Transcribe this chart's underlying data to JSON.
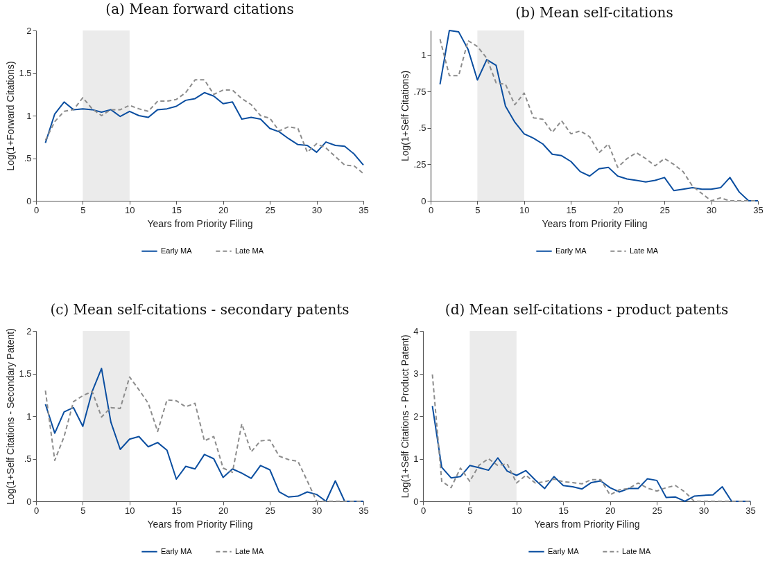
{
  "chart_data": [
    {
      "type": "line",
      "title": "(a) Mean forward citations",
      "xlabel": "Years from Priority Filing",
      "ylabel": "Log(1+Forward Citations)",
      "x": [
        1,
        2,
        3,
        4,
        5,
        6,
        7,
        8,
        9,
        10,
        11,
        12,
        13,
        14,
        15,
        16,
        17,
        18,
        19,
        20,
        21,
        22,
        23,
        24,
        25,
        26,
        27,
        28,
        29,
        30,
        31,
        32,
        33,
        34,
        35
      ],
      "series": [
        {
          "name": "Early MA",
          "color": "#0a4ea0",
          "line_style": "solid",
          "values": [
            0.68,
            1.02,
            1.16,
            1.07,
            1.08,
            1.07,
            1.04,
            1.07,
            0.99,
            1.05,
            1.0,
            0.98,
            1.07,
            1.08,
            1.11,
            1.18,
            1.2,
            1.27,
            1.23,
            1.14,
            1.16,
            0.96,
            0.98,
            0.96,
            0.85,
            0.81,
            0.73,
            0.66,
            0.65,
            0.57,
            0.69,
            0.65,
            0.64,
            0.55,
            0.42
          ]
        },
        {
          "name": "Late MA",
          "color": "#8c8c8c",
          "line_style": "dashed",
          "values": [
            0.71,
            0.93,
            1.05,
            1.07,
            1.21,
            1.08,
            1.0,
            1.07,
            1.07,
            1.12,
            1.08,
            1.05,
            1.17,
            1.17,
            1.19,
            1.27,
            1.42,
            1.42,
            1.25,
            1.3,
            1.3,
            1.2,
            1.13,
            1.0,
            0.97,
            0.82,
            0.87,
            0.85,
            0.57,
            0.67,
            0.62,
            0.52,
            0.42,
            0.41,
            0.32
          ]
        }
      ],
      "xlim": [
        0,
        35
      ],
      "xticks": [
        0,
        5,
        10,
        15,
        20,
        25,
        30,
        35
      ],
      "ylim": [
        0,
        2
      ],
      "yticks": [
        0,
        {
          "value": 0.5,
          "label": ".5"
        },
        1,
        1.5,
        2
      ],
      "bands": [
        {
          "axis": "x",
          "from": 5,
          "to": 10,
          "color": "#ebebeb"
        }
      ],
      "legend": "bottom",
      "grid": false
    },
    {
      "type": "line",
      "title": "(b) Mean self-citations",
      "xlabel": "Years from Priority Filing",
      "ylabel": "Log(1+Self Citations)",
      "x": [
        1,
        2,
        3,
        4,
        5,
        6,
        7,
        8,
        9,
        10,
        11,
        12,
        13,
        14,
        15,
        16,
        17,
        18,
        19,
        20,
        21,
        22,
        23,
        24,
        25,
        26,
        27,
        28,
        29,
        30,
        31,
        32,
        33,
        34,
        35
      ],
      "series": [
        {
          "name": "Early MA",
          "color": "#0a4ea0",
          "line_style": "solid",
          "values": [
            0.8,
            1.17,
            1.16,
            1.04,
            0.83,
            0.97,
            0.93,
            0.65,
            0.54,
            0.46,
            0.43,
            0.39,
            0.32,
            0.31,
            0.27,
            0.2,
            0.17,
            0.22,
            0.23,
            0.17,
            0.15,
            0.14,
            0.13,
            0.14,
            0.16,
            0.07,
            0.08,
            0.09,
            0.08,
            0.08,
            0.09,
            0.16,
            0.06,
            0,
            0
          ]
        },
        {
          "name": "Late MA",
          "color": "#8c8c8c",
          "line_style": "dashed",
          "values": [
            1.11,
            0.86,
            0.86,
            1.1,
            1.06,
            0.98,
            0.81,
            0.8,
            0.66,
            0.74,
            0.57,
            0.56,
            0.47,
            0.55,
            0.46,
            0.48,
            0.44,
            0.33,
            0.39,
            0.23,
            0.29,
            0.33,
            0.29,
            0.24,
            0.29,
            0.25,
            0.2,
            0.1,
            0.05,
            0,
            0.02,
            0,
            0,
            0,
            0
          ]
        }
      ],
      "xlim": [
        0,
        35
      ],
      "xticks": [
        0,
        5,
        10,
        15,
        20,
        25,
        30,
        35
      ],
      "ylim": [
        0,
        1.17
      ],
      "yticks": [
        0,
        {
          "value": 0.25,
          "label": ".25"
        },
        {
          "value": 0.5,
          "label": ".5"
        },
        {
          "value": 0.75,
          "label": ".75"
        },
        1
      ],
      "bands": [
        {
          "axis": "x",
          "from": 5,
          "to": 10,
          "color": "#ebebeb"
        }
      ],
      "legend": "bottom",
      "grid": false
    },
    {
      "type": "line",
      "title": "(c) Mean self-citations - secondary patents",
      "xlabel": "Years from Priority Filing",
      "ylabel": "Log(1+Self Citations - Secondary Patent)",
      "x": [
        1,
        2,
        3,
        4,
        5,
        6,
        7,
        8,
        9,
        10,
        11,
        12,
        13,
        14,
        15,
        16,
        17,
        18,
        19,
        20,
        21,
        22,
        23,
        24,
        25,
        26,
        27,
        28,
        29,
        30,
        31,
        32,
        33,
        34,
        35
      ],
      "series": [
        {
          "name": "Early MA",
          "color": "#0a4ea0",
          "line_style": "solid",
          "values": [
            1.14,
            0.8,
            1.05,
            1.1,
            0.88,
            1.29,
            1.56,
            0.93,
            0.61,
            0.73,
            0.76,
            0.64,
            0.69,
            0.6,
            0.26,
            0.41,
            0.38,
            0.55,
            0.5,
            0.28,
            0.38,
            0.33,
            0.27,
            0.42,
            0.37,
            0.11,
            0.05,
            0.06,
            0.11,
            0.08,
            0,
            0.24,
            0,
            0,
            0
          ]
        },
        {
          "name": "Late MA",
          "color": "#8c8c8c",
          "line_style": "dashed",
          "values": [
            1.3,
            0.48,
            0.76,
            1.17,
            1.24,
            1.29,
            0.99,
            1.1,
            1.09,
            1.46,
            1.31,
            1.15,
            0.82,
            1.19,
            1.18,
            1.11,
            1.15,
            0.71,
            0.76,
            0.39,
            0.34,
            0.91,
            0.58,
            0.71,
            0.72,
            0.53,
            0.49,
            0.47,
            0.24,
            0,
            0,
            0,
            0,
            0,
            0
          ]
        }
      ],
      "xlim": [
        0,
        35
      ],
      "xticks": [
        0,
        5,
        10,
        15,
        20,
        25,
        30,
        35
      ],
      "ylim": [
        0,
        2
      ],
      "yticks": [
        0,
        {
          "value": 0.5,
          "label": ".5"
        },
        1,
        1.5,
        2
      ],
      "bands": [
        {
          "axis": "x",
          "from": 5,
          "to": 10,
          "color": "#ebebeb"
        }
      ],
      "legend": "bottom",
      "grid": false
    },
    {
      "type": "line",
      "title": "(d) Mean self-citations - product patents",
      "xlabel": "Years from Priority Filing",
      "ylabel": "Log(1+Self Citations - Product Patent)",
      "x": [
        1,
        2,
        3,
        4,
        5,
        6,
        7,
        8,
        9,
        10,
        11,
        12,
        13,
        14,
        15,
        16,
        17,
        18,
        19,
        20,
        21,
        22,
        23,
        24,
        25,
        26,
        27,
        28,
        29,
        30,
        31,
        32,
        33,
        34,
        35
      ],
      "series": [
        {
          "name": "Early MA",
          "color": "#0a4ea0",
          "line_style": "solid",
          "values": [
            2.24,
            0.8,
            0.55,
            0.58,
            0.84,
            0.79,
            0.73,
            1.02,
            0.71,
            0.61,
            0.72,
            0.5,
            0.3,
            0.58,
            0.37,
            0.34,
            0.29,
            0.44,
            0.48,
            0.32,
            0.22,
            0.3,
            0.3,
            0.53,
            0.49,
            0.09,
            0.1,
            0,
            0.12,
            0.14,
            0.15,
            0.34,
            0,
            0,
            0
          ]
        },
        {
          "name": "Late MA",
          "color": "#8c8c8c",
          "line_style": "dashed",
          "values": [
            2.98,
            0.47,
            0.32,
            0.78,
            0.47,
            0.85,
            1.0,
            0.84,
            0.88,
            0.43,
            0.61,
            0.43,
            0.46,
            0.52,
            0.46,
            0.44,
            0.41,
            0.51,
            0.51,
            0.15,
            0.27,
            0.3,
            0.43,
            0.31,
            0.24,
            0.32,
            0.37,
            0.22,
            0,
            0,
            0,
            0,
            0,
            0,
            0
          ]
        }
      ],
      "xlim": [
        0,
        35
      ],
      "xticks": [
        0,
        5,
        10,
        15,
        20,
        25,
        30,
        35
      ],
      "ylim": [
        0,
        4
      ],
      "yticks": [
        0,
        1,
        2,
        3,
        4
      ],
      "bands": [
        {
          "axis": "x",
          "from": 5,
          "to": 10,
          "color": "#ebebeb"
        }
      ],
      "legend": "bottom",
      "grid": false
    }
  ]
}
